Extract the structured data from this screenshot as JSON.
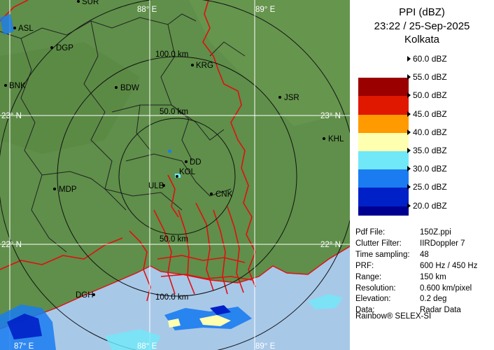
{
  "panel": {
    "title_line1": "PPI (dBZ)",
    "title_line2": "23:22 / 25-Sep-2025",
    "title_line3": "Kolkata",
    "legend": [
      {
        "label": "60.0 dBZ",
        "color": "#ffffff"
      },
      {
        "label": "55.0 dBZ",
        "color": "#9b0000"
      },
      {
        "label": "50.0 dBZ",
        "color": "#e01800"
      },
      {
        "label": "45.0 dBZ",
        "color": "#ff9a00"
      },
      {
        "label": "40.0 dBZ",
        "color": "#ffffb0"
      },
      {
        "label": "35.0 dBZ",
        "color": "#70e8f8"
      },
      {
        "label": "30.0 dBZ",
        "color": "#1a7cf0"
      },
      {
        "label": "25.0 dBZ",
        "color": "#0020c8"
      },
      {
        "label": "20.0 dBZ",
        "color": "#000090"
      }
    ],
    "info": [
      {
        "key": "Pdf File:",
        "value": "150Z.ppi"
      },
      {
        "key": "Clutter Filter:",
        "value": "IIRDoppler 7"
      },
      {
        "key": "Time sampling:",
        "value": "48"
      },
      {
        "key": "PRF:",
        "value": "600 Hz / 450 Hz"
      },
      {
        "key": "Range:",
        "value": "150 km"
      },
      {
        "key": "Resolution:",
        "value": "0.600 km/pixel"
      },
      {
        "key": "Elevation:",
        "value": "0.2 deg"
      },
      {
        "key": "Data:",
        "value": "Radar Data"
      }
    ],
    "footer": "Rainbow® SELEX-SI"
  },
  "map": {
    "colors": {
      "land": "#5f8f4a",
      "sea": "#a8c8e8",
      "district": "#222222",
      "border": "#e01010",
      "grid": "#ffffff"
    },
    "grid_labels": {
      "lon_87": "87° E",
      "lon_88": "88° E",
      "lon_89": "89° E",
      "lat_23": "23° N",
      "lat_22": "22° N"
    },
    "ring_labels": {
      "r100": "100.0 km",
      "r50_top": "50.0 km",
      "r50_bottom": "50.0 km",
      "r100_bottom": "100.0 km"
    },
    "cities": [
      {
        "id": "asl",
        "name": "ASL"
      },
      {
        "id": "sur",
        "name": "SUR"
      },
      {
        "id": "dgp",
        "name": "DGP"
      },
      {
        "id": "krg",
        "name": "KRG"
      },
      {
        "id": "bnk",
        "name": "BNK"
      },
      {
        "id": "bdw",
        "name": "BDW"
      },
      {
        "id": "jsr",
        "name": "JSR"
      },
      {
        "id": "khl",
        "name": "KHL"
      },
      {
        "id": "dd",
        "name": "DD"
      },
      {
        "id": "kol",
        "name": "KOL"
      },
      {
        "id": "ulb",
        "name": "ULB"
      },
      {
        "id": "cnk",
        "name": "CNK"
      },
      {
        "id": "mdp",
        "name": "MDP"
      },
      {
        "id": "dgh",
        "name": "DGH"
      }
    ]
  }
}
